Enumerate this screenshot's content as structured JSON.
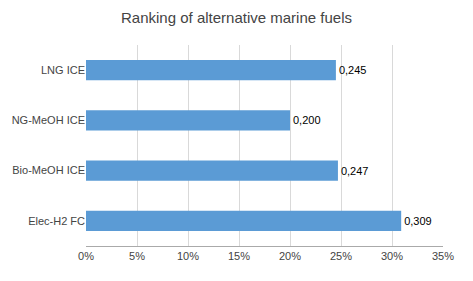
{
  "chart_data": {
    "type": "bar",
    "orientation": "horizontal",
    "title": "Ranking of alternative marine fuels",
    "categories": [
      "LNG ICE",
      "NG-MeOH ICE",
      "Bio-MeOH ICE",
      "Elec-H2 FC"
    ],
    "values": [
      0.245,
      0.2,
      0.247,
      0.309
    ],
    "value_labels": [
      "0,245",
      "0,200",
      "0,247",
      "0,309"
    ],
    "data_labels": true,
    "color": "#5B9BD5",
    "xlim": [
      0,
      0.35
    ],
    "xticks": [
      {
        "value": 0,
        "label": "0%"
      },
      {
        "value": 0.05,
        "label": "5%"
      },
      {
        "value": 0.1,
        "label": "10%"
      },
      {
        "value": 0.15,
        "label": "15%"
      },
      {
        "value": 0.2,
        "label": "20%"
      },
      {
        "value": 0.25,
        "label": "25%"
      },
      {
        "value": 0.3,
        "label": "30%"
      },
      {
        "value": 0.35,
        "label": "35%"
      }
    ],
    "grid": true
  }
}
